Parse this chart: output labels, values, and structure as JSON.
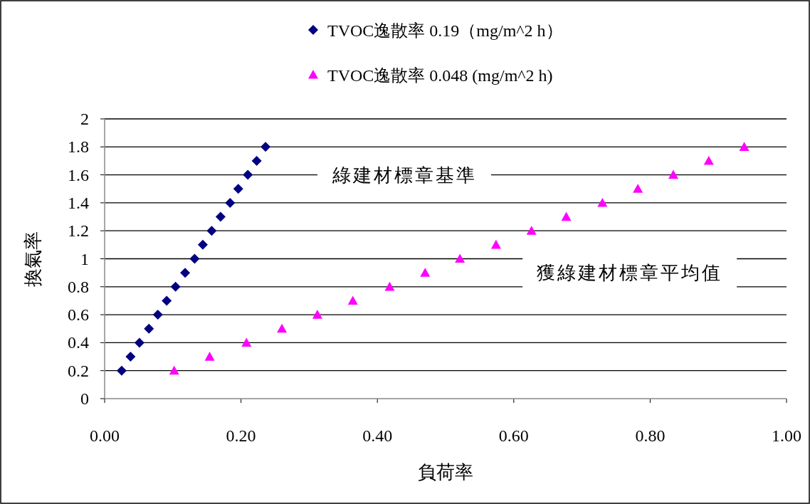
{
  "chart_data": {
    "type": "scatter",
    "xlabel": "負荷率",
    "ylabel": "換氣率",
    "xlim": [
      0,
      1
    ],
    "ylim": [
      0,
      2
    ],
    "xticks": [
      {
        "value": 0,
        "label": "0.00"
      },
      {
        "value": 0.2,
        "label": "0.20"
      },
      {
        "value": 0.4,
        "label": "0.40"
      },
      {
        "value": 0.6,
        "label": "0.60"
      },
      {
        "value": 0.8,
        "label": "0.80"
      },
      {
        "value": 1,
        "label": "1.00"
      }
    ],
    "yticks": [
      0,
      0.2,
      0.4,
      0.6,
      0.8,
      1,
      1.2,
      1.4,
      1.6,
      1.8,
      2
    ],
    "grid": "y",
    "legend": "top",
    "series": [
      {
        "name": "TVOC逸散率 0.19（mg/m^2 h）",
        "color": "#000080",
        "marker": "diamond",
        "x": [
          0.025,
          0.038,
          0.051,
          0.065,
          0.078,
          0.091,
          0.104,
          0.118,
          0.132,
          0.144,
          0.157,
          0.17,
          0.184,
          0.196,
          0.21,
          0.223,
          0.236
        ],
        "values": [
          0.2,
          0.3,
          0.4,
          0.5,
          0.6,
          0.7,
          0.8,
          0.9,
          1.0,
          1.1,
          1.2,
          1.3,
          1.4,
          1.5,
          1.6,
          1.7,
          1.8
        ]
      },
      {
        "name": "TVOC逸散率 0.048 (mg/m^2 h)",
        "color": "#ff00ff",
        "marker": "triangle",
        "x": [
          0.102,
          0.154,
          0.208,
          0.26,
          0.312,
          0.364,
          0.418,
          0.47,
          0.521,
          0.574,
          0.626,
          0.677,
          0.73,
          0.782,
          0.834,
          0.886,
          0.938
        ],
        "values": [
          0.2,
          0.3,
          0.4,
          0.5,
          0.6,
          0.7,
          0.8,
          0.9,
          1.0,
          1.1,
          1.2,
          1.3,
          1.4,
          1.5,
          1.6,
          1.7,
          1.8
        ]
      }
    ],
    "annotations": [
      "綠建材標章基準",
      "獲綠建材標章平均值"
    ]
  }
}
